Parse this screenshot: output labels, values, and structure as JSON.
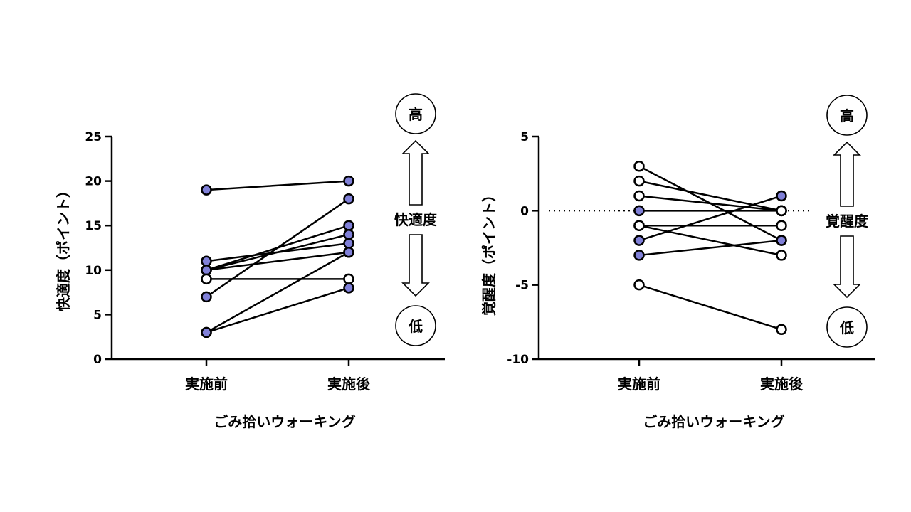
{
  "colors": {
    "filled": "#8080d8",
    "open": "#ffffff",
    "line": "#000000"
  },
  "chart_data": [
    {
      "type": "line",
      "xlabel": "ごみ拾いウォーキング",
      "ylabel": "快適度（ポイント）",
      "categories": [
        "実施前",
        "実施後"
      ],
      "ylim": [
        0,
        25
      ],
      "yticks": [
        0,
        5,
        10,
        15,
        20,
        25
      ],
      "scale_label": "快適度",
      "high_label": "高",
      "low_label": "低",
      "pairs": [
        {
          "values": [
            19,
            20
          ],
          "filled": [
            true,
            true
          ]
        },
        {
          "values": [
            11,
            13
          ],
          "filled": [
            true,
            true
          ]
        },
        {
          "values": [
            10,
            15
          ],
          "filled": [
            true,
            true
          ]
        },
        {
          "values": [
            10,
            14
          ],
          "filled": [
            true,
            true
          ]
        },
        {
          "values": [
            10,
            12
          ],
          "filled": [
            true,
            true
          ]
        },
        {
          "values": [
            9,
            9
          ],
          "filled": [
            false,
            false
          ]
        },
        {
          "values": [
            7,
            18
          ],
          "filled": [
            true,
            true
          ]
        },
        {
          "values": [
            3,
            12
          ],
          "filled": [
            true,
            true
          ]
        },
        {
          "values": [
            3,
            8
          ],
          "filled": [
            true,
            true
          ]
        }
      ]
    },
    {
      "type": "line",
      "xlabel": "ごみ拾いウォーキング",
      "ylabel": "覚醒度（ポイント）",
      "categories": [
        "実施前",
        "実施後"
      ],
      "ylim": [
        -10,
        5
      ],
      "yticks": [
        -10,
        -5,
        0,
        5
      ],
      "reference_line": 0,
      "scale_label": "覚醒度",
      "high_label": "高",
      "low_label": "低",
      "pairs": [
        {
          "values": [
            3,
            -2
          ],
          "filled": [
            false,
            true
          ]
        },
        {
          "values": [
            2,
            0
          ],
          "filled": [
            false,
            false
          ]
        },
        {
          "values": [
            1,
            0
          ],
          "filled": [
            false,
            false
          ]
        },
        {
          "values": [
            0,
            0
          ],
          "filled": [
            true,
            false
          ]
        },
        {
          "values": [
            -1,
            -1
          ],
          "filled": [
            false,
            false
          ]
        },
        {
          "values": [
            -1,
            -3
          ],
          "filled": [
            false,
            false
          ]
        },
        {
          "values": [
            -2,
            1
          ],
          "filled": [
            true,
            true
          ]
        },
        {
          "values": [
            -3,
            -2
          ],
          "filled": [
            true,
            true
          ]
        },
        {
          "values": [
            -5,
            -8
          ],
          "filled": [
            false,
            false
          ]
        }
      ]
    }
  ]
}
